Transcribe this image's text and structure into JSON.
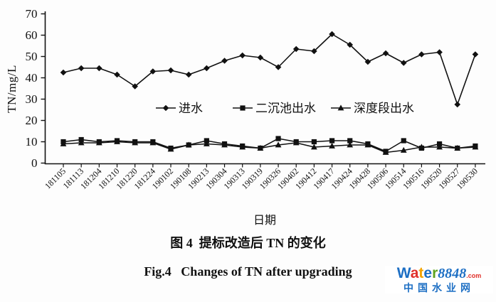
{
  "figure": {
    "y_axis_label": "TN/mg/L",
    "x_axis_label": "日期",
    "caption_cn": "图 4  提标改造后 TN 的变化",
    "caption_en": "Fig.4   Changes of TN after upgrading"
  },
  "chart_data": {
    "type": "line",
    "title": "",
    "xlabel": "日期",
    "ylabel": "TN/mg/L",
    "ylim": [
      0,
      70
    ],
    "y_ticks": [
      0,
      10,
      20,
      30,
      40,
      50,
      60,
      70
    ],
    "grid": false,
    "legend_position": "inside-center",
    "line_color": "#111111",
    "categories": [
      "181105",
      "181113",
      "181204",
      "181210",
      "181220",
      "181224",
      "190102",
      "190108",
      "190213",
      "190304",
      "190313",
      "190319",
      "190326",
      "190402",
      "190412",
      "190417",
      "190424",
      "190428",
      "190506",
      "190514",
      "190516",
      "190520",
      "190527",
      "190530"
    ],
    "series": [
      {
        "name": "进水",
        "marker": "diamond",
        "values": [
          42.5,
          44.5,
          44.5,
          41.5,
          36,
          43,
          43.5,
          41.5,
          44.5,
          48,
          50.5,
          49.5,
          45,
          53.5,
          52.5,
          60.5,
          55.5,
          47.5,
          51.5,
          47,
          51,
          52,
          27.5,
          51
        ]
      },
      {
        "name": "二沉池出水",
        "marker": "square",
        "values": [
          10,
          11,
          10,
          10.5,
          10,
          10,
          7,
          8.5,
          10.5,
          9,
          8,
          7,
          11.5,
          10,
          10,
          10.5,
          10.5,
          9,
          5.5,
          10.5,
          7,
          9,
          7,
          8
        ]
      },
      {
        "name": "深度段出水",
        "marker": "triangle",
        "values": [
          9,
          9.5,
          9.5,
          10,
          9.5,
          9.5,
          6.5,
          8.5,
          9,
          8.5,
          7.5,
          7,
          8.5,
          9.5,
          7.5,
          8,
          8.5,
          8.5,
          5,
          6,
          7.5,
          7.5,
          7,
          7.5
        ]
      }
    ]
  },
  "watermark": {
    "letters": [
      {
        "ch": "W",
        "color": "#1d6fc4"
      },
      {
        "ch": "a",
        "color": "#e0302a"
      },
      {
        "ch": "t",
        "color": "#f2a300"
      },
      {
        "ch": "e",
        "color": "#1d6fc4"
      },
      {
        "ch": "r",
        "color": "#5fa41e"
      }
    ],
    "number": "8848",
    "number_color": "#1d6fc4",
    "dotcom": ".com",
    "dotcom_color": "#e0302a",
    "subtitle": "中国水业网",
    "subtitle_color": "#1d6fc4"
  }
}
